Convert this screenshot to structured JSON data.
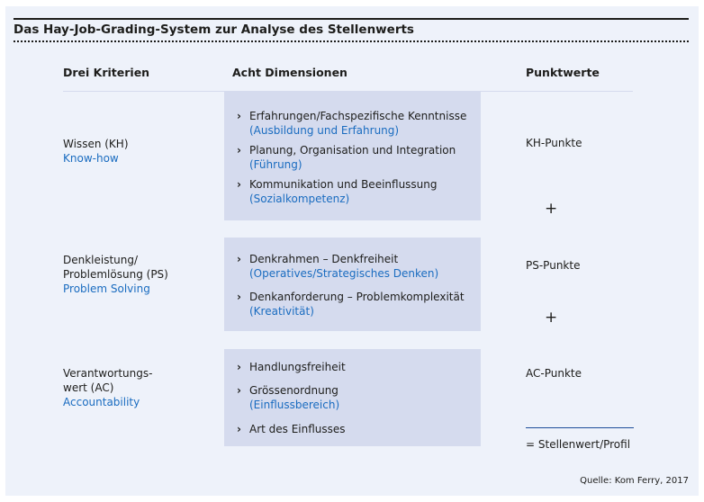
{
  "title": "Das Hay-Job-Grading-System zur Analyse des Stellenwerts",
  "headers": {
    "criteria": "Drei Kriterien",
    "dimensions": "Acht Dimensionen",
    "points": "Punktwerte"
  },
  "rows": [
    {
      "criterion": [
        "Wissen (KH)"
      ],
      "english": "Know-how",
      "points": "KH-Punkte",
      "dimensions": [
        {
          "main": "Erfahrungen/Fachspezifische Kenntnisse",
          "sub": "(Ausbildung und Erfahrung)"
        },
        {
          "main": "Planung, Organisation und Integration",
          "sub": "(Führung)"
        },
        {
          "main": "Kommunikation und Beeinflussung",
          "sub": "(Sozialkompetenz)"
        }
      ]
    },
    {
      "criterion": [
        "Denkleistung/",
        "Problemlösung (PS)"
      ],
      "english": "Problem Solving",
      "points": "PS-Punkte",
      "dimensions": [
        {
          "main": "Denkrahmen – Denkfreiheit",
          "sub": "(Operatives/Strategisches Denken)"
        },
        {
          "main": "Denkanforderung – Problemkomplexität",
          "sub": "(Kreativität)"
        }
      ]
    },
    {
      "criterion": [
        "Verantwortungs-",
        "wert (AC)"
      ],
      "english": "Accountability",
      "points": "AC-Punkte",
      "dimensions": [
        {
          "main": "Handlungsfreiheit",
          "sub": ""
        },
        {
          "main": "Grössenordnung",
          "sub": "(Einflussbereich)"
        },
        {
          "main": "Art des Einflusses",
          "sub": ""
        }
      ]
    }
  ],
  "plus": "+",
  "result": "= Stellenwert/Profil",
  "source": "Quelle: Kom Ferry, 2017",
  "colors": {
    "panel": "#eef2fa",
    "box": "#d5dbee",
    "accent": "#1a6cc0"
  }
}
